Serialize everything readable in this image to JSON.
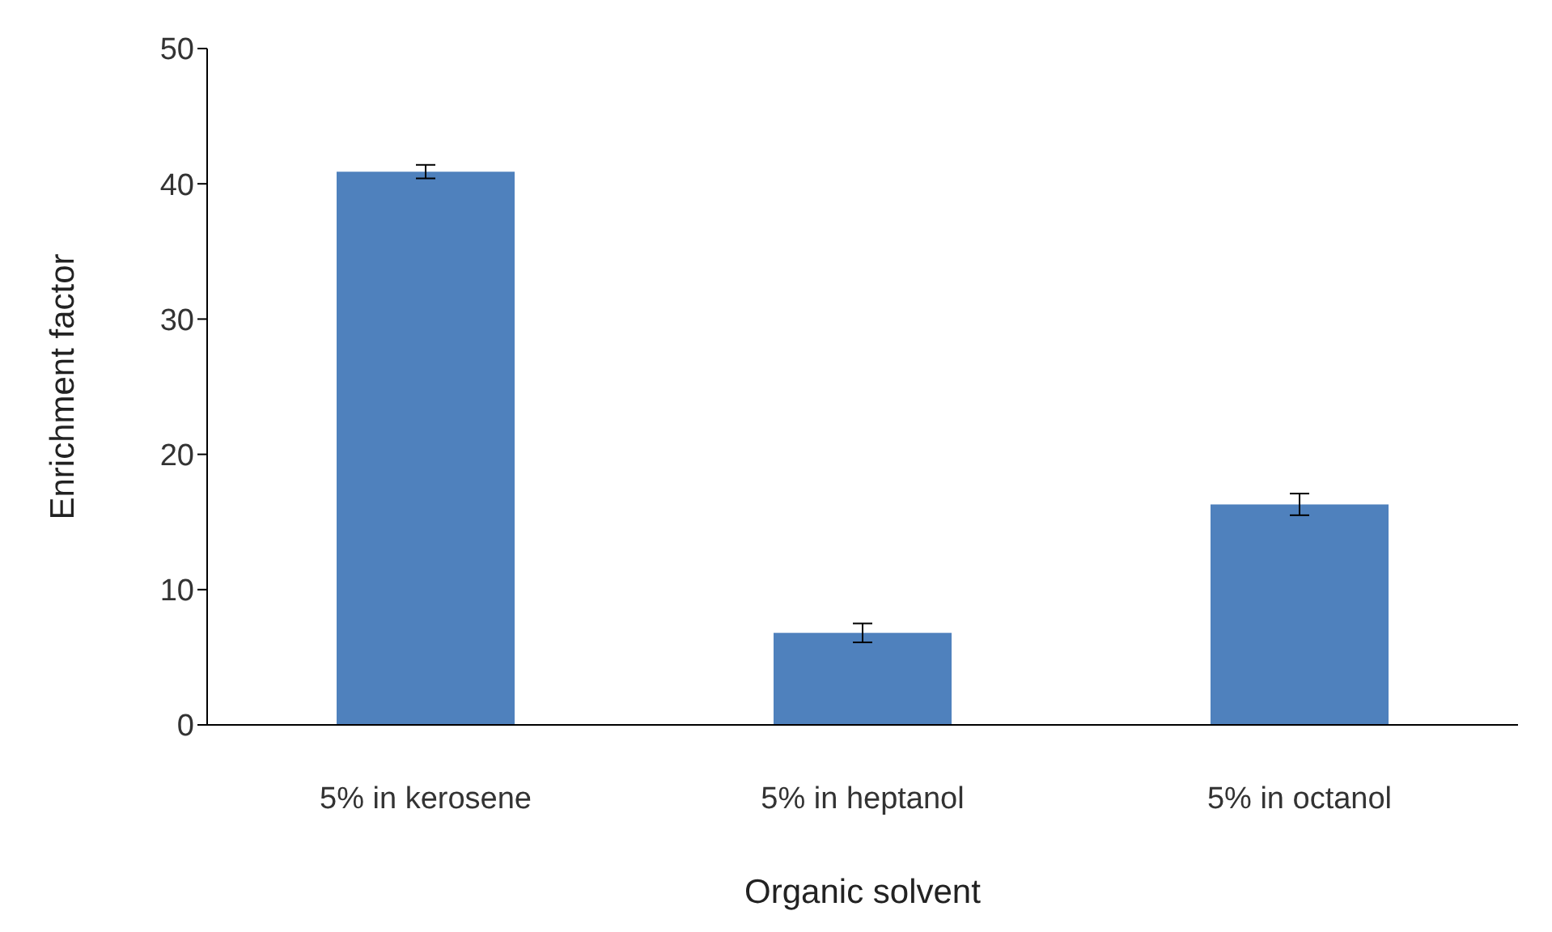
{
  "chart_data": {
    "type": "bar",
    "xlabel": "Organic solvent",
    "ylabel": "Enrichment factor",
    "categories": [
      "5% in kerosene",
      "5% in heptanol",
      "5% in octanol"
    ],
    "values": [
      40.9,
      6.8,
      16.3
    ],
    "errors": [
      0.5,
      0.7,
      0.8
    ],
    "color": "#4f81bd",
    "ylim": [
      0,
      50
    ],
    "yticks": [
      0,
      10,
      20,
      30,
      40,
      50
    ],
    "grid": false,
    "legend": false
  }
}
